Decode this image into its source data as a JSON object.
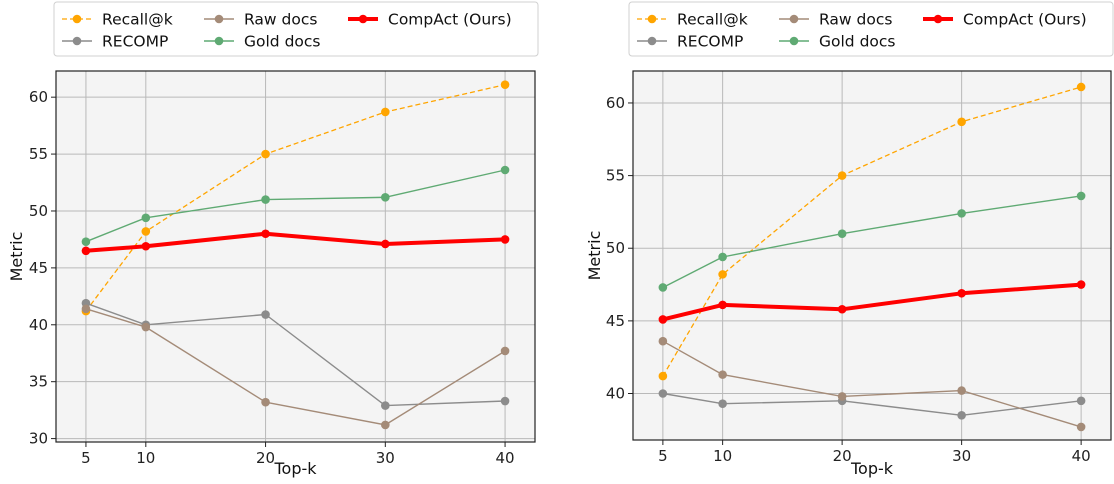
{
  "chart_data": [
    {
      "type": "line",
      "xlabel": "Top-k",
      "ylabel": "Metric",
      "x": [
        5,
        10,
        20,
        30,
        40
      ],
      "x_ticks": [
        5,
        10,
        20,
        30,
        40
      ],
      "xlim": [
        2.5,
        42.5
      ],
      "ylim": [
        29.7,
        62.3
      ],
      "y_ticks": [
        30,
        35,
        40,
        45,
        50,
        55,
        60
      ],
      "grid": true,
      "legend_position": "top",
      "series": [
        {
          "name": "Recall@k",
          "color": "#ffa500",
          "style": "dashed",
          "values": [
            41.2,
            48.2,
            55.0,
            58.7,
            61.1
          ]
        },
        {
          "name": "RECOMP",
          "color": "#8c8c8c",
          "style": "solid",
          "values": [
            41.9,
            40.0,
            40.9,
            32.9,
            33.3
          ]
        },
        {
          "name": "Raw docs",
          "color": "#a48b78",
          "style": "solid",
          "values": [
            41.4,
            39.8,
            33.2,
            31.2,
            37.7
          ]
        },
        {
          "name": "Gold docs",
          "color": "#5faa73",
          "style": "solid",
          "values": [
            47.3,
            49.4,
            51.0,
            51.2,
            53.6
          ]
        },
        {
          "name": "CompAct (Ours)",
          "color": "#ff0000",
          "style": "bold",
          "values": [
            46.5,
            46.9,
            48.0,
            47.1,
            47.5
          ]
        }
      ]
    },
    {
      "type": "line",
      "xlabel": "Top-k",
      "ylabel": "Metric",
      "x": [
        5,
        10,
        20,
        30,
        40
      ],
      "x_ticks": [
        5,
        10,
        20,
        30,
        40
      ],
      "xlim": [
        2.5,
        42.5
      ],
      "ylim": [
        36.8,
        62.2
      ],
      "y_ticks": [
        40,
        45,
        50,
        55,
        60
      ],
      "grid": true,
      "legend_position": "top",
      "series": [
        {
          "name": "Recall@k",
          "color": "#ffa500",
          "style": "dashed",
          "values": [
            41.2,
            48.2,
            55.0,
            58.7,
            61.1
          ]
        },
        {
          "name": "RECOMP",
          "color": "#8c8c8c",
          "style": "solid",
          "values": [
            40.0,
            39.3,
            39.5,
            38.5,
            39.5
          ]
        },
        {
          "name": "Raw docs",
          "color": "#a48b78",
          "style": "solid",
          "values": [
            43.6,
            41.3,
            39.8,
            40.2,
            37.7
          ]
        },
        {
          "name": "Gold docs",
          "color": "#5faa73",
          "style": "solid",
          "values": [
            47.3,
            49.4,
            51.0,
            52.4,
            53.6
          ]
        },
        {
          "name": "CompAct (Ours)",
          "color": "#ff0000",
          "style": "bold",
          "values": [
            45.1,
            46.1,
            45.8,
            46.9,
            47.5
          ]
        }
      ]
    }
  ]
}
